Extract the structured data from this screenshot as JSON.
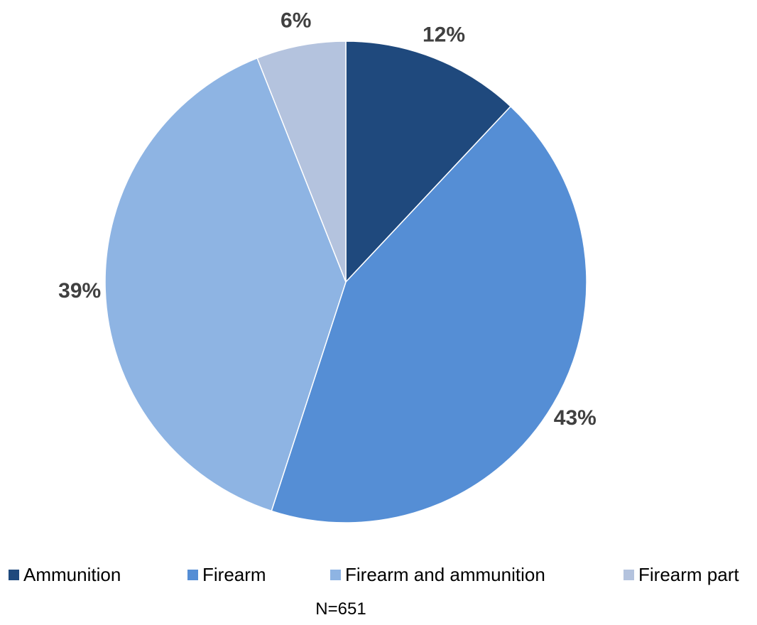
{
  "chart_data": {
    "type": "pie",
    "title": "",
    "slices": [
      {
        "label": "Ammunition",
        "value": 12,
        "value_label": "12%",
        "color": "#1F497D"
      },
      {
        "label": "Firearm",
        "value": 43,
        "value_label": "43%",
        "color": "#558ED5"
      },
      {
        "label": "Firearm and ammunition",
        "value": 39,
        "value_label": "39%",
        "color": "#8EB4E3"
      },
      {
        "label": "Firearm part",
        "value": 6,
        "value_label": "6%",
        "color": "#B4C3DE"
      }
    ],
    "legend_position": "bottom",
    "note": "N=651"
  }
}
